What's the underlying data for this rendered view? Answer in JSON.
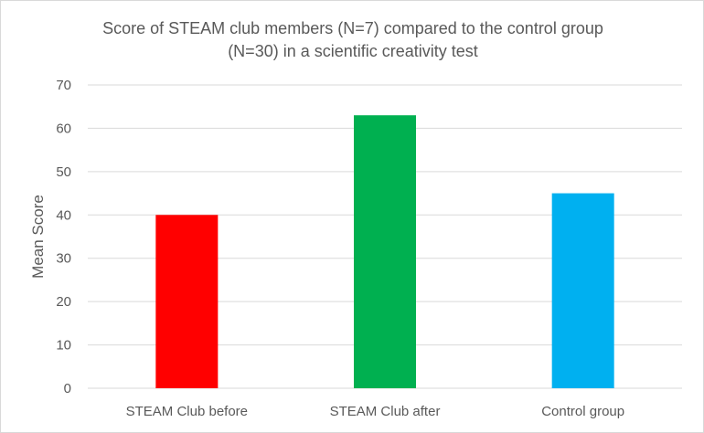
{
  "chart_data": {
    "type": "bar",
    "title_line1": "Score of STEAM club members (N=7) compared to the control group",
    "title_line2": "(N=30) in a scientific creativity test",
    "ylabel": "Mean Score",
    "xlabel": "",
    "categories": [
      "STEAM Club before",
      "STEAM Club after",
      "Control group"
    ],
    "values": [
      40,
      63,
      45
    ],
    "colors": [
      "#ff0000",
      "#00b050",
      "#00b0f0"
    ],
    "ylim": [
      0,
      70
    ],
    "yticks": [
      0,
      10,
      20,
      30,
      40,
      50,
      60,
      70
    ],
    "grid": true,
    "legend": "none"
  }
}
